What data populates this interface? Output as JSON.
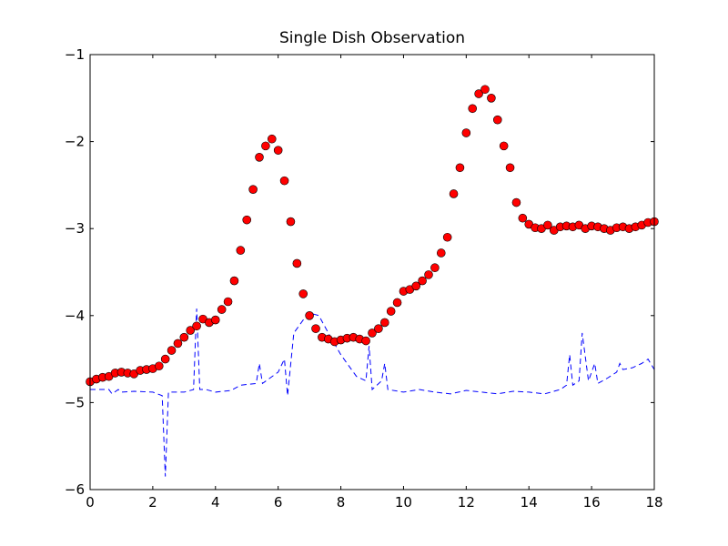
{
  "chart_data": {
    "type": "scatter",
    "title": "Single Dish Observation",
    "xlim": [
      0,
      18
    ],
    "ylim": [
      -6,
      -1
    ],
    "xticks": [
      0,
      2,
      4,
      6,
      8,
      10,
      12,
      14,
      16,
      18
    ],
    "yticks": [
      {
        "value": -6,
        "label": "−6"
      },
      {
        "value": -5,
        "label": "−5"
      },
      {
        "value": -4,
        "label": "−4"
      },
      {
        "value": -3,
        "label": "−3"
      },
      {
        "value": -2,
        "label": "−2"
      },
      {
        "value": -1,
        "label": "−1"
      }
    ],
    "series": [
      {
        "kind": "scatter",
        "color": "#ff0000",
        "x": [
          0,
          0.2,
          0.4,
          0.6,
          0.8,
          1,
          1.2,
          1.4,
          1.6,
          1.8,
          2,
          2.2,
          2.4,
          2.6,
          2.8,
          3,
          3.2,
          3.4,
          3.6,
          3.8,
          4,
          4.2,
          4.4,
          4.6,
          4.8,
          5,
          5.2,
          5.4,
          5.6,
          5.8,
          6,
          6.2,
          6.4,
          6.6,
          6.8,
          7,
          7.2,
          7.4,
          7.6,
          7.8,
          8,
          8.2,
          8.4,
          8.6,
          8.8,
          9,
          9.2,
          9.4,
          9.6,
          9.8,
          10,
          10.2,
          10.4,
          10.6,
          10.8,
          11,
          11.2,
          11.4,
          11.6,
          11.8,
          12,
          12.2,
          12.4,
          12.6,
          12.8,
          13,
          13.2,
          13.4,
          13.6,
          13.8,
          14,
          14.2,
          14.4,
          14.6,
          14.8,
          15,
          15.2,
          15.4,
          15.6,
          15.8,
          16,
          16.2,
          16.4,
          16.6,
          16.8,
          17,
          17.2,
          17.4,
          17.6,
          17.8,
          18
        ],
        "values": [
          -4.76,
          -4.73,
          -4.71,
          -4.7,
          -4.66,
          -4.65,
          -4.66,
          -4.67,
          -4.63,
          -4.62,
          -4.61,
          -4.58,
          -4.5,
          -4.4,
          -4.32,
          -4.25,
          -4.17,
          -4.12,
          -4.04,
          -4.08,
          -4.05,
          -3.93,
          -3.84,
          -3.6,
          -3.25,
          -2.9,
          -2.55,
          -2.18,
          -2.05,
          -1.97,
          -2.1,
          -2.45,
          -2.92,
          -3.4,
          -3.75,
          -4,
          -4.15,
          -4.25,
          -4.27,
          -4.3,
          -4.28,
          -4.26,
          -4.25,
          -4.27,
          -4.29,
          -4.2,
          -4.15,
          -4.08,
          -3.95,
          -3.85,
          -3.72,
          -3.7,
          -3.66,
          -3.6,
          -3.53,
          -3.45,
          -3.28,
          -3.1,
          -2.6,
          -2.3,
          -1.9,
          -1.62,
          -1.45,
          -1.4,
          -1.5,
          -1.75,
          -2.05,
          -2.3,
          -2.7,
          -2.88,
          -2.95,
          -2.99,
          -3,
          -2.96,
          -3.02,
          -2.98,
          -2.97,
          -2.98,
          -2.96,
          -3,
          -2.97,
          -2.98,
          -3,
          -3.02,
          -2.99,
          -2.98,
          -3,
          -2.98,
          -2.96,
          -2.93,
          -2.92
        ]
      },
      {
        "kind": "line",
        "color": "#0000ff",
        "dashed": true,
        "x": [
          0,
          0.6,
          0.7,
          0.9,
          1,
          1.4,
          2,
          2.3,
          2.4,
          2.5,
          3,
          3.3,
          3.4,
          3.5,
          3.7,
          4,
          4.5,
          4.8,
          5.3,
          5.4,
          5.5,
          6,
          6.2,
          6.3,
          6.5,
          6.8,
          7,
          7.3,
          7.6,
          8,
          8.5,
          8.8,
          8.9,
          9,
          9.3,
          9.4,
          9.5,
          10,
          10.5,
          11,
          11.5,
          12,
          12.5,
          13,
          13.5,
          14,
          14.5,
          15,
          15.2,
          15.3,
          15.4,
          15.6,
          15.7,
          15.9,
          16.1,
          16.2,
          16.5,
          16.8,
          16.9,
          17,
          17.3,
          17.6,
          17.8,
          18
        ],
        "values": [
          -4.85,
          -4.85,
          -4.9,
          -4.85,
          -4.88,
          -4.87,
          -4.88,
          -4.92,
          -5.85,
          -4.88,
          -4.88,
          -4.85,
          -3.92,
          -4.85,
          -4.85,
          -4.88,
          -4.86,
          -4.8,
          -4.78,
          -4.55,
          -4.78,
          -4.65,
          -4.5,
          -4.92,
          -4.2,
          -4.05,
          -3.97,
          -4,
          -4.2,
          -4.45,
          -4.7,
          -4.75,
          -4.35,
          -4.85,
          -4.75,
          -4.55,
          -4.85,
          -4.88,
          -4.85,
          -4.88,
          -4.9,
          -4.86,
          -4.88,
          -4.9,
          -4.87,
          -4.88,
          -4.9,
          -4.85,
          -4.8,
          -4.45,
          -4.8,
          -4.75,
          -4.2,
          -4.75,
          -4.55,
          -4.78,
          -4.72,
          -4.65,
          -4.55,
          -4.62,
          -4.6,
          -4.55,
          -4.5,
          -4.62
        ]
      }
    ]
  }
}
